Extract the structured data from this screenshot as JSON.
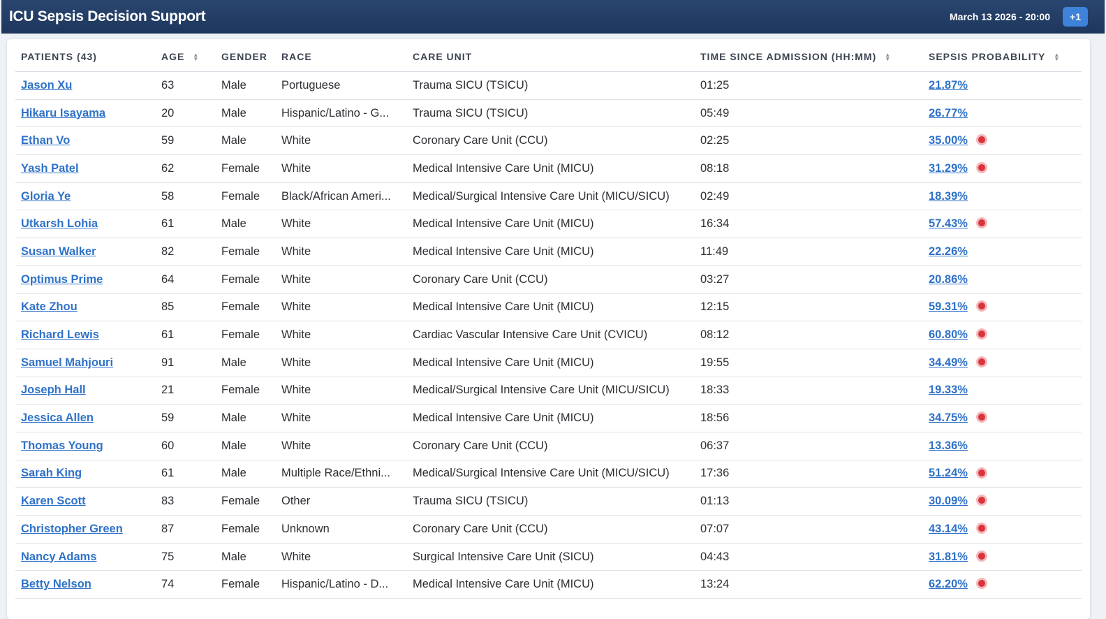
{
  "header": {
    "title": "ICU Sepsis Decision Support",
    "datetime": "March 13 2026 - 20:00",
    "button": "+1"
  },
  "table": {
    "headers": [
      {
        "label": "PATIENTS (43)",
        "sortable": false
      },
      {
        "label": "AGE",
        "sortable": true
      },
      {
        "label": "GENDER",
        "sortable": false
      },
      {
        "label": "RACE",
        "sortable": false
      },
      {
        "label": "CARE UNIT",
        "sortable": false
      },
      {
        "label": "TIME SINCE ADMISSION (HH:MM)",
        "sortable": true
      },
      {
        "label": "SEPSIS PROBABILITY",
        "sortable": true
      }
    ],
    "rows": [
      [
        "Jason Xu",
        "63",
        "Male",
        "Portuguese",
        "Trauma SICU (TSICU)",
        "01:25",
        "21.87%",
        false
      ],
      [
        "Hikaru Isayama",
        "20",
        "Male",
        "Hispanic/Latino - G...",
        "Trauma SICU (TSICU)",
        "05:49",
        "26.77%",
        false
      ],
      [
        "Ethan Vo",
        "59",
        "Male",
        "White",
        "Coronary Care Unit (CCU)",
        "02:25",
        "35.00%",
        true
      ],
      [
        "Yash Patel",
        "62",
        "Female",
        "White",
        "Medical Intensive Care Unit (MICU)",
        "08:18",
        "31.29%",
        true
      ],
      [
        "Gloria Ye",
        "58",
        "Female",
        "Black/African Ameri...",
        "Medical/Surgical Intensive Care Unit (MICU/SICU)",
        "02:49",
        "18.39%",
        false
      ],
      [
        "Utkarsh Lohia",
        "61",
        "Male",
        "White",
        "Medical Intensive Care Unit (MICU)",
        "16:34",
        "57.43%",
        true
      ],
      [
        "Susan Walker",
        "82",
        "Female",
        "White",
        "Medical Intensive Care Unit (MICU)",
        "11:49",
        "22.26%",
        false
      ],
      [
        "Optimus Prime",
        "64",
        "Female",
        "White",
        "Coronary Care Unit (CCU)",
        "03:27",
        "20.86%",
        false
      ],
      [
        "Kate Zhou",
        "85",
        "Female",
        "White",
        "Medical Intensive Care Unit (MICU)",
        "12:15",
        "59.31%",
        true
      ],
      [
        "Richard Lewis",
        "61",
        "Female",
        "White",
        "Cardiac Vascular Intensive Care Unit (CVICU)",
        "08:12",
        "60.80%",
        true
      ],
      [
        "Samuel Mahjouri",
        "91",
        "Male",
        "White",
        "Medical Intensive Care Unit (MICU)",
        "19:55",
        "34.49%",
        true
      ],
      [
        "Joseph Hall",
        "21",
        "Female",
        "White",
        "Medical/Surgical Intensive Care Unit (MICU/SICU)",
        "18:33",
        "19.33%",
        false
      ],
      [
        "Jessica Allen",
        "59",
        "Male",
        "White",
        "Medical Intensive Care Unit (MICU)",
        "18:56",
        "34.75%",
        true
      ],
      [
        "Thomas Young",
        "60",
        "Male",
        "White",
        "Coronary Care Unit (CCU)",
        "06:37",
        "13.36%",
        false
      ],
      [
        "Sarah King",
        "61",
        "Male",
        "Multiple Race/Ethni...",
        "Medical/Surgical Intensive Care Unit (MICU/SICU)",
        "17:36",
        "51.24%",
        true
      ],
      [
        "Karen Scott",
        "83",
        "Female",
        "Other",
        "Trauma SICU (TSICU)",
        "01:13",
        "30.09%",
        true
      ],
      [
        "Christopher Green",
        "87",
        "Female",
        "Unknown",
        "Coronary Care Unit (CCU)",
        "07:07",
        "43.14%",
        true
      ],
      [
        "Nancy Adams",
        "75",
        "Male",
        "White",
        "Surgical Intensive Care Unit (SICU)",
        "04:43",
        "31.81%",
        true
      ],
      [
        "Betty Nelson",
        "74",
        "Female",
        "Hispanic/Latino - D...",
        "Medical Intensive Care Unit (MICU)",
        "13:24",
        "62.20%",
        true
      ]
    ]
  }
}
